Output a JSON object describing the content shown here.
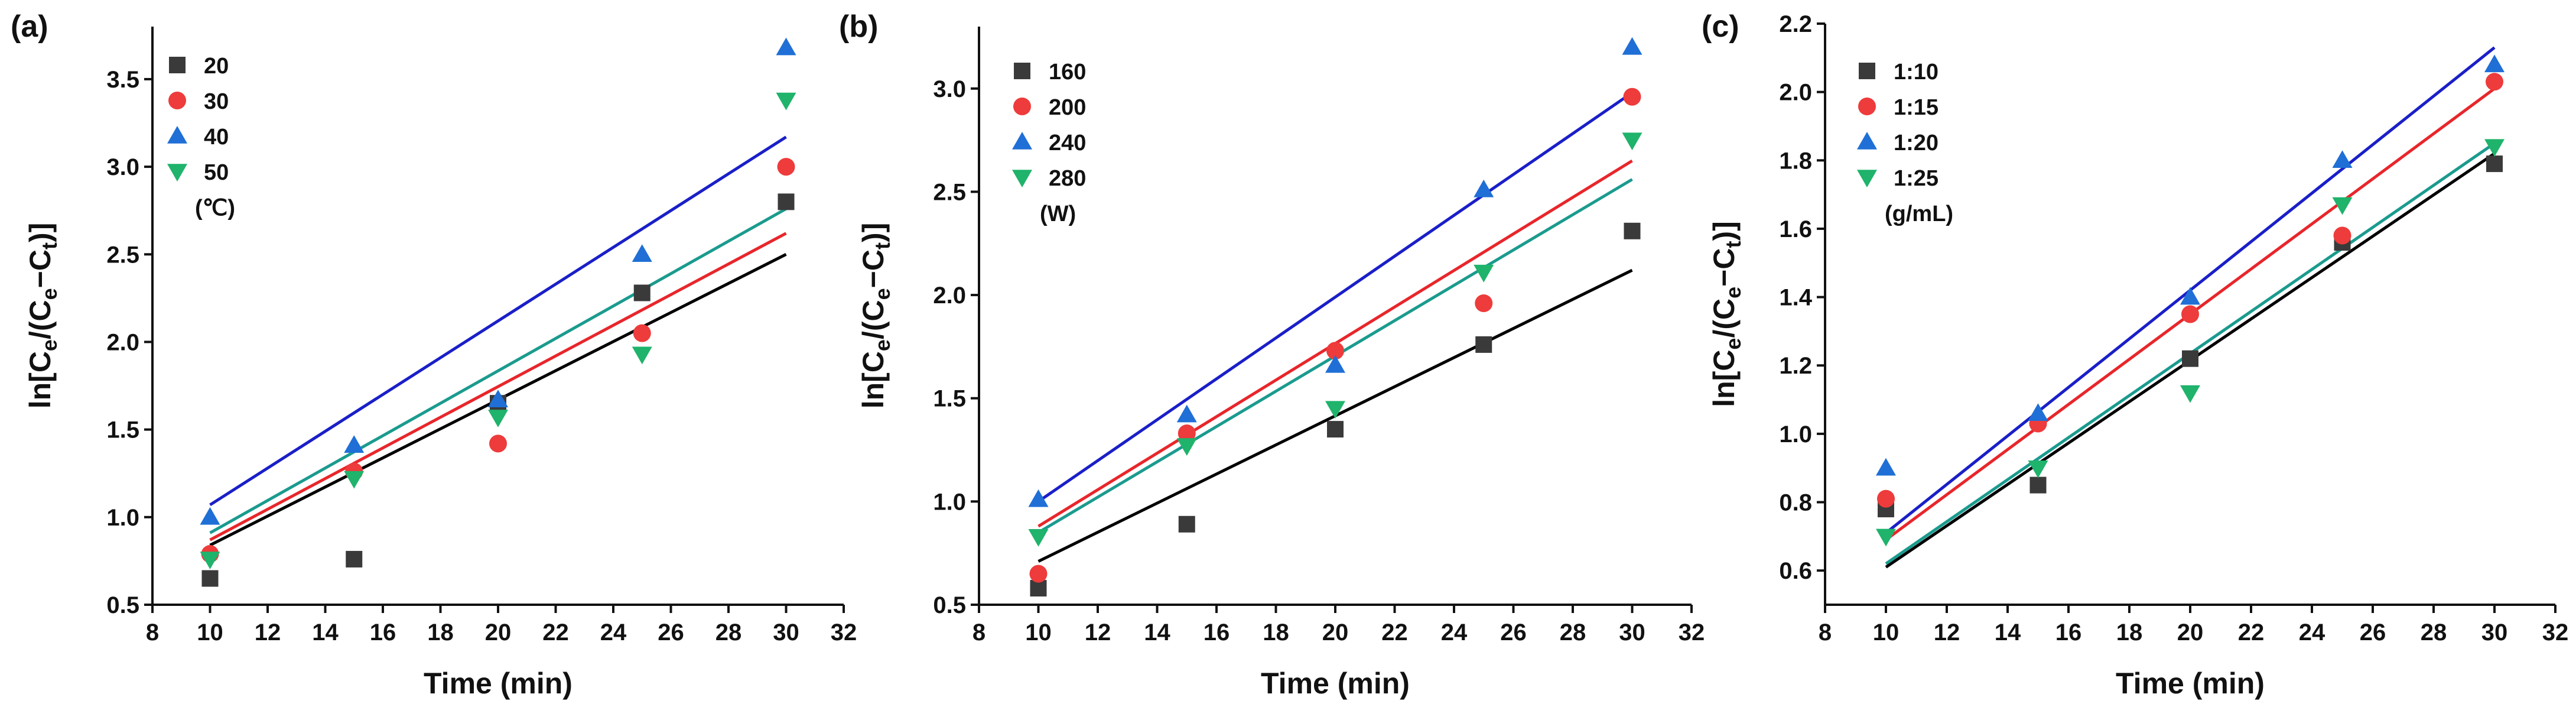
{
  "chart_data": [
    {
      "panel_label": "(a)",
      "type": "scatter",
      "xlabel": "Time (min)",
      "ylabel_main": "ln[C",
      "ylabel_parts": [
        "ln[C",
        "e",
        "/(C",
        "e",
        "−C",
        "t",
        ")]"
      ],
      "xlim": [
        8,
        32
      ],
      "ylim": [
        0.5,
        3.8
      ],
      "xticks": [
        8,
        10,
        12,
        14,
        16,
        18,
        20,
        22,
        24,
        26,
        28,
        30,
        32
      ],
      "yticks": [
        0.5,
        1.0,
        1.5,
        2.0,
        2.5,
        3.0,
        3.5
      ],
      "ytick_labels": [
        "0.5",
        "1.0",
        "1.5",
        "2.0",
        "2.5",
        "3.0",
        "3.5"
      ],
      "x": [
        10,
        15,
        20,
        25,
        30
      ],
      "legend_unit": "(℃)",
      "series": [
        {
          "name": "20",
          "marker": "square",
          "color": "#3a3a3a",
          "line_color": "#000000",
          "values": [
            0.65,
            0.76,
            1.65,
            2.28,
            2.8
          ],
          "fit": [
            0.84,
            2.5
          ]
        },
        {
          "name": "30",
          "marker": "circle",
          "color": "#ee3b3b",
          "line_color": "#e8262b",
          "values": [
            0.79,
            1.26,
            1.42,
            2.05,
            3.0
          ],
          "fit": [
            0.87,
            2.62
          ]
        },
        {
          "name": "40",
          "marker": "triangle-up",
          "color": "#1f6fd6",
          "line_color": "#1a1fc8",
          "values": [
            1.0,
            1.41,
            1.67,
            2.5,
            3.68
          ],
          "fit": [
            1.07,
            3.17
          ]
        },
        {
          "name": "50",
          "marker": "triangle-down",
          "color": "#1fb36b",
          "line_color": "#1a9b8e",
          "values": [
            0.76,
            1.22,
            1.57,
            1.93,
            3.38
          ],
          "fit": [
            0.91,
            2.76
          ]
        }
      ]
    },
    {
      "panel_label": "(b)",
      "type": "scatter",
      "xlabel": "Time (min)",
      "ylabel_parts": [
        "ln[C",
        "e",
        "/(C",
        "e",
        "−C",
        "t",
        ")]"
      ],
      "xlim": [
        8,
        32
      ],
      "ylim": [
        0.5,
        3.3
      ],
      "xticks": [
        8,
        10,
        12,
        14,
        16,
        18,
        20,
        22,
        24,
        26,
        28,
        30,
        32
      ],
      "yticks": [
        0.5,
        1.0,
        1.5,
        2.0,
        2.5,
        3.0
      ],
      "ytick_labels": [
        "0.5",
        "1.0",
        "1.5",
        "2.0",
        "2.5",
        "3.0"
      ],
      "x": [
        10,
        15,
        20,
        25,
        30
      ],
      "legend_unit": "(W)",
      "series": [
        {
          "name": "160",
          "marker": "square",
          "color": "#3a3a3a",
          "line_color": "#000000",
          "values": [
            0.58,
            0.89,
            1.35,
            1.76,
            2.31
          ],
          "fit": [
            0.71,
            2.12
          ]
        },
        {
          "name": "200",
          "marker": "circle",
          "color": "#ee3b3b",
          "line_color": "#e8262b",
          "values": [
            0.65,
            1.33,
            1.73,
            1.96,
            2.96
          ],
          "fit": [
            0.88,
            2.65
          ]
        },
        {
          "name": "240",
          "marker": "triangle-up",
          "color": "#1f6fd6",
          "line_color": "#1a1fc8",
          "values": [
            1.01,
            1.42,
            1.66,
            2.51,
            3.2
          ],
          "fit": [
            1.0,
            2.98
          ]
        },
        {
          "name": "280",
          "marker": "triangle-down",
          "color": "#1fb36b",
          "line_color": "#1a9b8e",
          "values": [
            0.83,
            1.27,
            1.45,
            2.11,
            2.75
          ],
          "fit": [
            0.85,
            2.56
          ]
        }
      ]
    },
    {
      "panel_label": "(c)",
      "type": "scatter",
      "xlabel": "Time (min)",
      "ylabel_parts": [
        "ln[C",
        "e",
        "/(C",
        "e",
        "−C",
        "t",
        ")]"
      ],
      "xlim": [
        8,
        32
      ],
      "ylim": [
        0.5,
        2.2
      ],
      "xticks": [
        8,
        10,
        12,
        14,
        16,
        18,
        20,
        22,
        24,
        26,
        28,
        30,
        32
      ],
      "yticks": [
        0.6,
        0.8,
        1.0,
        1.2,
        1.4,
        1.6,
        1.8,
        2.0,
        2.2
      ],
      "ytick_labels": [
        "0.6",
        "0.8",
        "1.0",
        "1.2",
        "1.4",
        "1.6",
        "1.8",
        "2.0",
        "2.2"
      ],
      "x": [
        10,
        15,
        20,
        25,
        30
      ],
      "legend_unit": "(g/mL)",
      "series": [
        {
          "name": "1:10",
          "marker": "square",
          "color": "#3a3a3a",
          "line_color": "#000000",
          "values": [
            0.78,
            0.85,
            1.22,
            1.56,
            1.79
          ],
          "fit": [
            0.61,
            1.82
          ]
        },
        {
          "name": "1:15",
          "marker": "circle",
          "color": "#ee3b3b",
          "line_color": "#e8262b",
          "values": [
            0.81,
            1.03,
            1.35,
            1.58,
            2.03
          ],
          "fit": [
            0.69,
            2.01
          ]
        },
        {
          "name": "1:20",
          "marker": "triangle-up",
          "color": "#1f6fd6",
          "line_color": "#1a1fc8",
          "values": [
            0.9,
            1.06,
            1.4,
            1.8,
            2.08
          ],
          "fit": [
            0.71,
            2.13
          ]
        },
        {
          "name": "1:25",
          "marker": "triangle-down",
          "color": "#1fb36b",
          "line_color": "#1a9b8e",
          "values": [
            0.7,
            0.9,
            1.12,
            1.67,
            1.84
          ],
          "fit": [
            0.62,
            1.85
          ]
        }
      ]
    }
  ]
}
